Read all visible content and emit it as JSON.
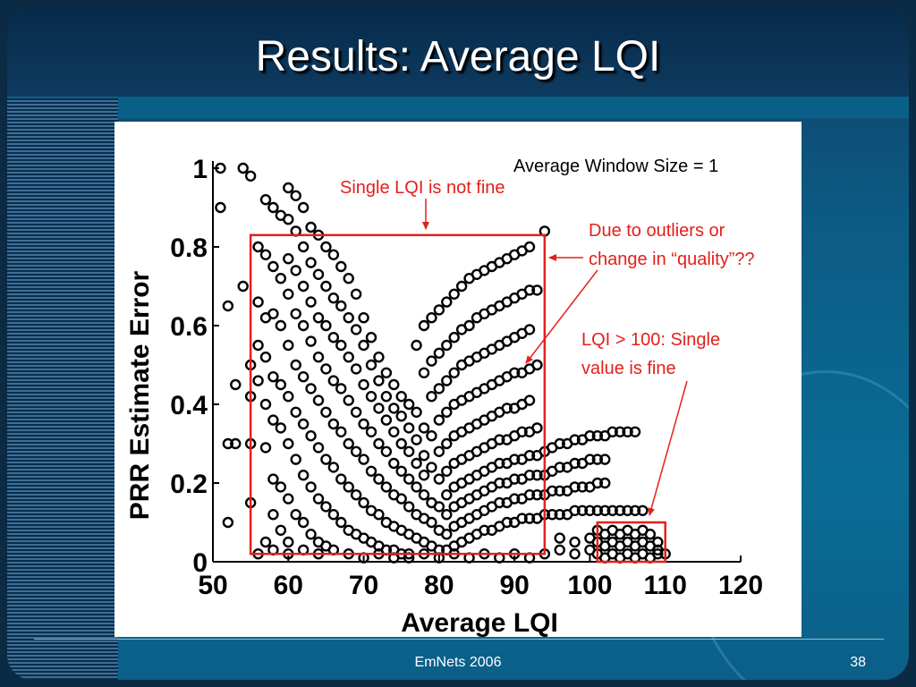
{
  "slide": {
    "title": "Results: Average LQI",
    "footer": "EmNets 2006",
    "page_number": "38"
  },
  "colors": {
    "annotation": "#e3201b",
    "background": "#0a6c95",
    "points": "#000000"
  },
  "annotations": {
    "window_size": "Average Window Size = 1",
    "single_lqi": "Single LQI is not fine",
    "outliers_line1": "Due to outliers or",
    "outliers_line2": "change in “quality”??",
    "lqi100_line1": "LQI > 100: Single",
    "lqi100_line2": "value is fine"
  },
  "chart_data": {
    "type": "scatter",
    "xlabel": "Average LQI",
    "ylabel": "PRR Estimate Error",
    "xlim": [
      50,
      120
    ],
    "ylim": [
      0,
      1
    ],
    "x_ticks": [
      "50",
      "60",
      "70",
      "80",
      "90",
      "100",
      "110",
      "120"
    ],
    "y_ticks": [
      "0",
      "0.2",
      "0.4",
      "0.6",
      "0.8",
      "1"
    ],
    "grid": false,
    "highlight_regions": [
      {
        "x": [
          55,
          94
        ],
        "y": [
          0.02,
          0.83
        ]
      },
      {
        "x": [
          101,
          110
        ],
        "y": [
          0.0,
          0.1
        ]
      }
    ],
    "points": [
      [
        51,
        1.0
      ],
      [
        51,
        0.9
      ],
      [
        52,
        0.65
      ],
      [
        52,
        0.3
      ],
      [
        52,
        0.1
      ],
      [
        53,
        0.3
      ],
      [
        53,
        0.45
      ],
      [
        54,
        1.0
      ],
      [
        54,
        0.7
      ],
      [
        55,
        0.98
      ],
      [
        55,
        0.5
      ],
      [
        55,
        0.42
      ],
      [
        55,
        0.3
      ],
      [
        55,
        0.15
      ],
      [
        56,
        0.8
      ],
      [
        56,
        0.66
      ],
      [
        56,
        0.55
      ],
      [
        56,
        0.46
      ],
      [
        57,
        0.92
      ],
      [
        57,
        0.78
      ],
      [
        57,
        0.62
      ],
      [
        57,
        0.52
      ],
      [
        57,
        0.4
      ],
      [
        57,
        0.29
      ],
      [
        57,
        0.05
      ],
      [
        58,
        0.9
      ],
      [
        58,
        0.75
      ],
      [
        58,
        0.63
      ],
      [
        58,
        0.47
      ],
      [
        58,
        0.36
      ],
      [
        58,
        0.21
      ],
      [
        58,
        0.12
      ],
      [
        59,
        0.88
      ],
      [
        59,
        0.72
      ],
      [
        59,
        0.6
      ],
      [
        59,
        0.45
      ],
      [
        59,
        0.34
      ],
      [
        59,
        0.19
      ],
      [
        59,
        0.08
      ],
      [
        60,
        0.95
      ],
      [
        60,
        0.87
      ],
      [
        60,
        0.77
      ],
      [
        60,
        0.68
      ],
      [
        60,
        0.55
      ],
      [
        60,
        0.42
      ],
      [
        60,
        0.3
      ],
      [
        60,
        0.16
      ],
      [
        60,
        0.05
      ],
      [
        61,
        0.93
      ],
      [
        61,
        0.84
      ],
      [
        61,
        0.74
      ],
      [
        61,
        0.63
      ],
      [
        61,
        0.5
      ],
      [
        61,
        0.38
      ],
      [
        61,
        0.26
      ],
      [
        61,
        0.12
      ],
      [
        62,
        0.9
      ],
      [
        62,
        0.8
      ],
      [
        62,
        0.7
      ],
      [
        62,
        0.6
      ],
      [
        62,
        0.47
      ],
      [
        62,
        0.35
      ],
      [
        62,
        0.22
      ],
      [
        62,
        0.1
      ],
      [
        63,
        0.85
      ],
      [
        63,
        0.76
      ],
      [
        63,
        0.66
      ],
      [
        63,
        0.56
      ],
      [
        63,
        0.44
      ],
      [
        63,
        0.32
      ],
      [
        63,
        0.19
      ],
      [
        63,
        0.07
      ],
      [
        64,
        0.83
      ],
      [
        64,
        0.73
      ],
      [
        64,
        0.62
      ],
      [
        64,
        0.52
      ],
      [
        64,
        0.41
      ],
      [
        64,
        0.29
      ],
      [
        64,
        0.16
      ],
      [
        64,
        0.05
      ],
      [
        65,
        0.8
      ],
      [
        65,
        0.7
      ],
      [
        65,
        0.6
      ],
      [
        65,
        0.49
      ],
      [
        65,
        0.38
      ],
      [
        65,
        0.26
      ],
      [
        65,
        0.14
      ],
      [
        65,
        0.04
      ],
      [
        66,
        0.78
      ],
      [
        66,
        0.67
      ],
      [
        66,
        0.57
      ],
      [
        66,
        0.46
      ],
      [
        66,
        0.35
      ],
      [
        66,
        0.24
      ],
      [
        66,
        0.12
      ],
      [
        67,
        0.75
      ],
      [
        67,
        0.65
      ],
      [
        67,
        0.55
      ],
      [
        67,
        0.44
      ],
      [
        67,
        0.33
      ],
      [
        67,
        0.21
      ],
      [
        67,
        0.1
      ],
      [
        68,
        0.72
      ],
      [
        68,
        0.62
      ],
      [
        68,
        0.52
      ],
      [
        68,
        0.41
      ],
      [
        68,
        0.3
      ],
      [
        68,
        0.19
      ],
      [
        68,
        0.08
      ],
      [
        69,
        0.68
      ],
      [
        69,
        0.59
      ],
      [
        69,
        0.49
      ],
      [
        69,
        0.38
      ],
      [
        69,
        0.28
      ],
      [
        69,
        0.17
      ],
      [
        69,
        0.07
      ],
      [
        70,
        0.62
      ],
      [
        70,
        0.55
      ],
      [
        70,
        0.45
      ],
      [
        70,
        0.35
      ],
      [
        70,
        0.26
      ],
      [
        70,
        0.15
      ],
      [
        70,
        0.06
      ],
      [
        71,
        0.57
      ],
      [
        71,
        0.5
      ],
      [
        71,
        0.42
      ],
      [
        71,
        0.33
      ],
      [
        71,
        0.23
      ],
      [
        71,
        0.13
      ],
      [
        71,
        0.05
      ],
      [
        72,
        0.52
      ],
      [
        72,
        0.46
      ],
      [
        72,
        0.39
      ],
      [
        72,
        0.3
      ],
      [
        72,
        0.21
      ],
      [
        72,
        0.12
      ],
      [
        72,
        0.04
      ],
      [
        73,
        0.48
      ],
      [
        73,
        0.42
      ],
      [
        73,
        0.36
      ],
      [
        73,
        0.28
      ],
      [
        73,
        0.19
      ],
      [
        73,
        0.1
      ],
      [
        73,
        0.03
      ],
      [
        74,
        0.45
      ],
      [
        74,
        0.39
      ],
      [
        74,
        0.33
      ],
      [
        74,
        0.25
      ],
      [
        74,
        0.17
      ],
      [
        74,
        0.09
      ],
      [
        74,
        0.03
      ],
      [
        75,
        0.42
      ],
      [
        75,
        0.37
      ],
      [
        75,
        0.3
      ],
      [
        75,
        0.23
      ],
      [
        75,
        0.16
      ],
      [
        75,
        0.08
      ],
      [
        75,
        0.02
      ],
      [
        76,
        0.4
      ],
      [
        76,
        0.34
      ],
      [
        76,
        0.28
      ],
      [
        76,
        0.21
      ],
      [
        76,
        0.14
      ],
      [
        76,
        0.07
      ],
      [
        76,
        0.02
      ],
      [
        77,
        0.55
      ],
      [
        77,
        0.38
      ],
      [
        77,
        0.31
      ],
      [
        77,
        0.25
      ],
      [
        77,
        0.19
      ],
      [
        77,
        0.12
      ],
      [
        77,
        0.06
      ],
      [
        78,
        0.6
      ],
      [
        78,
        0.48
      ],
      [
        78,
        0.34
      ],
      [
        78,
        0.27
      ],
      [
        78,
        0.22
      ],
      [
        78,
        0.17
      ],
      [
        78,
        0.11
      ],
      [
        78,
        0.05
      ],
      [
        79,
        0.62
      ],
      [
        79,
        0.51
      ],
      [
        79,
        0.42
      ],
      [
        79,
        0.32
      ],
      [
        79,
        0.24
      ],
      [
        79,
        0.15
      ],
      [
        79,
        0.1
      ],
      [
        79,
        0.04
      ],
      [
        80,
        0.64
      ],
      [
        80,
        0.53
      ],
      [
        80,
        0.44
      ],
      [
        80,
        0.36
      ],
      [
        80,
        0.28
      ],
      [
        80,
        0.21
      ],
      [
        80,
        0.14
      ],
      [
        80,
        0.08
      ],
      [
        80,
        0.03
      ],
      [
        81,
        0.66
      ],
      [
        81,
        0.55
      ],
      [
        81,
        0.46
      ],
      [
        81,
        0.38
      ],
      [
        81,
        0.3
      ],
      [
        81,
        0.23
      ],
      [
        81,
        0.17
      ],
      [
        81,
        0.12
      ],
      [
        81,
        0.07
      ],
      [
        81,
        0.03
      ],
      [
        82,
        0.68
      ],
      [
        82,
        0.57
      ],
      [
        82,
        0.48
      ],
      [
        82,
        0.4
      ],
      [
        82,
        0.32
      ],
      [
        82,
        0.25
      ],
      [
        82,
        0.19
      ],
      [
        82,
        0.14
      ],
      [
        82,
        0.09
      ],
      [
        82,
        0.04
      ],
      [
        83,
        0.7
      ],
      [
        83,
        0.59
      ],
      [
        83,
        0.5
      ],
      [
        83,
        0.41
      ],
      [
        83,
        0.33
      ],
      [
        83,
        0.26
      ],
      [
        83,
        0.2
      ],
      [
        83,
        0.15
      ],
      [
        83,
        0.1
      ],
      [
        83,
        0.05
      ],
      [
        84,
        0.72
      ],
      [
        84,
        0.6
      ],
      [
        84,
        0.51
      ],
      [
        84,
        0.42
      ],
      [
        84,
        0.34
      ],
      [
        84,
        0.27
      ],
      [
        84,
        0.21
      ],
      [
        84,
        0.16
      ],
      [
        84,
        0.11
      ],
      [
        84,
        0.06
      ],
      [
        85,
        0.73
      ],
      [
        85,
        0.62
      ],
      [
        85,
        0.52
      ],
      [
        85,
        0.43
      ],
      [
        85,
        0.35
      ],
      [
        85,
        0.28
      ],
      [
        85,
        0.22
      ],
      [
        85,
        0.17
      ],
      [
        85,
        0.12
      ],
      [
        85,
        0.07
      ],
      [
        86,
        0.74
      ],
      [
        86,
        0.63
      ],
      [
        86,
        0.53
      ],
      [
        86,
        0.44
      ],
      [
        86,
        0.36
      ],
      [
        86,
        0.29
      ],
      [
        86,
        0.23
      ],
      [
        86,
        0.18
      ],
      [
        86,
        0.13
      ],
      [
        86,
        0.08
      ],
      [
        87,
        0.75
      ],
      [
        87,
        0.64
      ],
      [
        87,
        0.54
      ],
      [
        87,
        0.45
      ],
      [
        87,
        0.37
      ],
      [
        87,
        0.3
      ],
      [
        87,
        0.24
      ],
      [
        87,
        0.19
      ],
      [
        87,
        0.14
      ],
      [
        87,
        0.08
      ],
      [
        88,
        0.76
      ],
      [
        88,
        0.65
      ],
      [
        88,
        0.55
      ],
      [
        88,
        0.46
      ],
      [
        88,
        0.38
      ],
      [
        88,
        0.31
      ],
      [
        88,
        0.25
      ],
      [
        88,
        0.2
      ],
      [
        88,
        0.15
      ],
      [
        88,
        0.09
      ],
      [
        89,
        0.77
      ],
      [
        89,
        0.66
      ],
      [
        89,
        0.56
      ],
      [
        89,
        0.47
      ],
      [
        89,
        0.39
      ],
      [
        89,
        0.31
      ],
      [
        89,
        0.25
      ],
      [
        89,
        0.2
      ],
      [
        89,
        0.15
      ],
      [
        89,
        0.1
      ],
      [
        90,
        0.78
      ],
      [
        90,
        0.67
      ],
      [
        90,
        0.57
      ],
      [
        90,
        0.48
      ],
      [
        90,
        0.39
      ],
      [
        90,
        0.32
      ],
      [
        90,
        0.26
      ],
      [
        90,
        0.21
      ],
      [
        90,
        0.16
      ],
      [
        90,
        0.1
      ],
      [
        91,
        0.79
      ],
      [
        91,
        0.68
      ],
      [
        91,
        0.58
      ],
      [
        91,
        0.48
      ],
      [
        91,
        0.4
      ],
      [
        91,
        0.33
      ],
      [
        91,
        0.26
      ],
      [
        91,
        0.21
      ],
      [
        91,
        0.16
      ],
      [
        91,
        0.11
      ],
      [
        92,
        0.8
      ],
      [
        92,
        0.69
      ],
      [
        92,
        0.59
      ],
      [
        92,
        0.49
      ],
      [
        92,
        0.41
      ],
      [
        92,
        0.33
      ],
      [
        92,
        0.27
      ],
      [
        92,
        0.22
      ],
      [
        92,
        0.17
      ],
      [
        92,
        0.11
      ],
      [
        93,
        0.69
      ],
      [
        93,
        0.5
      ],
      [
        93,
        0.34
      ],
      [
        93,
        0.27
      ],
      [
        93,
        0.22
      ],
      [
        93,
        0.17
      ],
      [
        93,
        0.11
      ],
      [
        94,
        0.84
      ],
      [
        94,
        0.28
      ],
      [
        94,
        0.22
      ],
      [
        94,
        0.17
      ],
      [
        94,
        0.12
      ],
      [
        95,
        0.29
      ],
      [
        95,
        0.23
      ],
      [
        95,
        0.18
      ],
      [
        95,
        0.12
      ],
      [
        96,
        0.3
      ],
      [
        96,
        0.24
      ],
      [
        96,
        0.18
      ],
      [
        96,
        0.12
      ],
      [
        97,
        0.3
      ],
      [
        97,
        0.24
      ],
      [
        97,
        0.18
      ],
      [
        97,
        0.12
      ],
      [
        98,
        0.31
      ],
      [
        98,
        0.25
      ],
      [
        98,
        0.19
      ],
      [
        98,
        0.13
      ],
      [
        99,
        0.31
      ],
      [
        99,
        0.25
      ],
      [
        99,
        0.19
      ],
      [
        99,
        0.13
      ],
      [
        100,
        0.32
      ],
      [
        100,
        0.26
      ],
      [
        100,
        0.19
      ],
      [
        100,
        0.13
      ],
      [
        101,
        0.32
      ],
      [
        101,
        0.26
      ],
      [
        101,
        0.2
      ],
      [
        101,
        0.13
      ],
      [
        102,
        0.32
      ],
      [
        102,
        0.26
      ],
      [
        102,
        0.2
      ],
      [
        102,
        0.13
      ],
      [
        103,
        0.33
      ],
      [
        103,
        0.13
      ],
      [
        104,
        0.33
      ],
      [
        104,
        0.13
      ],
      [
        105,
        0.33
      ],
      [
        105,
        0.13
      ],
      [
        106,
        0.33
      ],
      [
        106,
        0.13
      ],
      [
        107,
        0.13
      ],
      [
        56,
        0.02
      ],
      [
        58,
        0.03
      ],
      [
        60,
        0.02
      ],
      [
        62,
        0.03
      ],
      [
        64,
        0.02
      ],
      [
        66,
        0.03
      ],
      [
        68,
        0.02
      ],
      [
        70,
        0.01
      ],
      [
        72,
        0.02
      ],
      [
        74,
        0.01
      ],
      [
        76,
        0.01
      ],
      [
        78,
        0.02
      ],
      [
        80,
        0.01
      ],
      [
        82,
        0.02
      ],
      [
        84,
        0.01
      ],
      [
        86,
        0.02
      ],
      [
        88,
        0.01
      ],
      [
        90,
        0.02
      ],
      [
        92,
        0.01
      ],
      [
        94,
        0.02
      ],
      [
        96,
        0.03
      ],
      [
        96,
        0.06
      ],
      [
        98,
        0.02
      ],
      [
        98,
        0.05
      ],
      [
        100,
        0.03
      ],
      [
        100,
        0.06
      ],
      [
        101,
        0.02
      ],
      [
        101,
        0.05
      ],
      [
        101,
        0.08
      ],
      [
        102,
        0.01
      ],
      [
        102,
        0.04
      ],
      [
        102,
        0.07
      ],
      [
        103,
        0.02
      ],
      [
        103,
        0.05
      ],
      [
        103,
        0.08
      ],
      [
        104,
        0.01
      ],
      [
        104,
        0.04
      ],
      [
        104,
        0.07
      ],
      [
        105,
        0.02
      ],
      [
        105,
        0.05
      ],
      [
        105,
        0.08
      ],
      [
        106,
        0.01
      ],
      [
        106,
        0.04
      ],
      [
        106,
        0.07
      ],
      [
        107,
        0.02
      ],
      [
        107,
        0.05
      ],
      [
        107,
        0.08
      ],
      [
        108,
        0.01
      ],
      [
        108,
        0.04
      ],
      [
        108,
        0.07
      ],
      [
        109,
        0.02
      ],
      [
        109,
        0.05
      ],
      [
        109,
        0.03
      ],
      [
        110,
        0.02
      ]
    ]
  }
}
